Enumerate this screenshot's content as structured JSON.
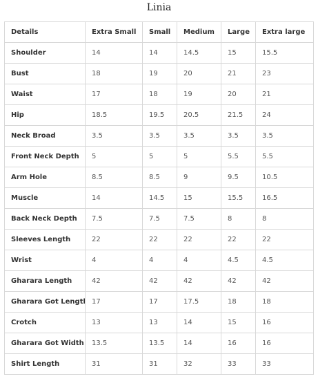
{
  "title": "Linia",
  "table": {
    "headers": [
      "Details",
      "Extra Small",
      "Small",
      "Medium",
      "Large",
      "Extra large"
    ],
    "rows": [
      [
        "Shoulder",
        "14",
        "14",
        "14.5",
        "15",
        "15.5"
      ],
      [
        "Bust",
        "18",
        "19",
        "20",
        "21",
        "23"
      ],
      [
        "Waist",
        "17",
        "18",
        "19",
        "20",
        "21"
      ],
      [
        "Hip",
        "18.5",
        "19.5",
        "20.5",
        "21.5",
        "24"
      ],
      [
        "Neck Broad",
        "3.5",
        "3.5",
        "3.5",
        "3.5",
        "3.5"
      ],
      [
        "Front Neck Depth",
        "5",
        "5",
        "5",
        "5.5",
        "5.5"
      ],
      [
        "Arm Hole",
        "8.5",
        "8.5",
        "9",
        "9.5",
        "10.5"
      ],
      [
        "Muscle",
        "14",
        "14.5",
        "15",
        "15.5",
        "16.5"
      ],
      [
        "Back Neck Depth",
        "7.5",
        "7.5",
        "7.5",
        "8",
        "8"
      ],
      [
        "Sleeves Length",
        "22",
        "22",
        "22",
        "22",
        "22"
      ],
      [
        "Wrist",
        "4",
        "4",
        "4",
        "4.5",
        "4.5"
      ],
      [
        "Gharara Length",
        "42",
        "42",
        "42",
        "42",
        "42"
      ],
      [
        "Gharara Got Length",
        "17",
        "17",
        "17.5",
        "18",
        "18"
      ],
      [
        "Crotch",
        "13",
        "13",
        "14",
        "15",
        "16"
      ],
      [
        "Gharara Got Width",
        "13.5",
        "13.5",
        "14",
        "16",
        "16"
      ],
      [
        "Shirt Length",
        "31",
        "31",
        "32",
        "33",
        "33"
      ]
    ]
  }
}
